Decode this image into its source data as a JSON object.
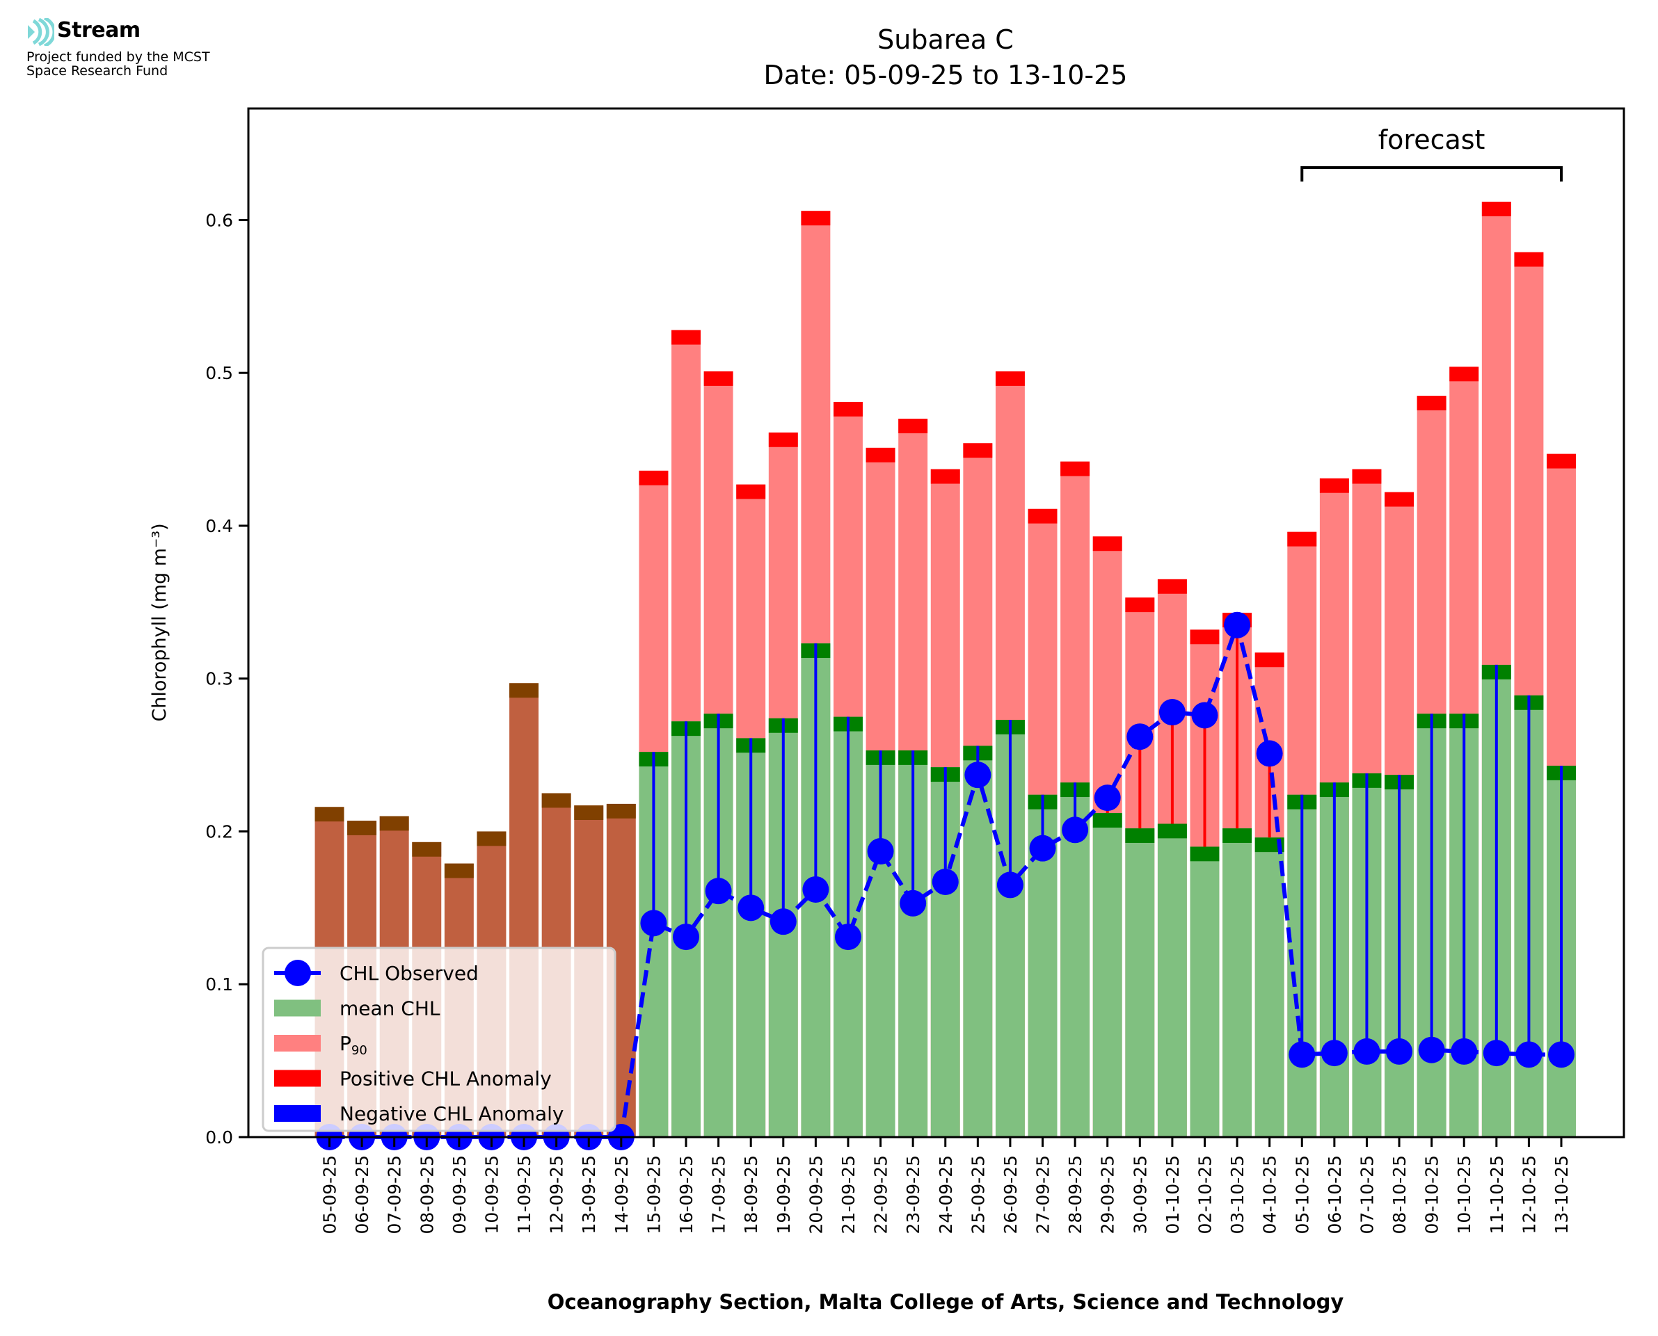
{
  "logo": {
    "name": "Stream",
    "subtitle_line1": "Project funded by the MCST",
    "subtitle_line2": "Space Research Fund",
    "accent_color": "#7fd8d8"
  },
  "chart_data": {
    "type": "bar",
    "title": "Subarea C",
    "subtitle": "Date: 05-09-25 to 13-10-25",
    "xlabel": "Oceanography Section, Malta College of Arts, Science and Technology",
    "ylabel": "Chlorophyll (mg m⁻³)",
    "ylim": [
      0,
      0.673
    ],
    "yticks": [
      0.0,
      0.1,
      0.2,
      0.3,
      0.4,
      0.5,
      0.6
    ],
    "ytick_labels": [
      "0.0",
      "0.1",
      "0.2",
      "0.3",
      "0.4",
      "0.5",
      "0.6"
    ],
    "grid": false,
    "legend_position": "lower-left",
    "annotation": {
      "text": "forecast",
      "from": "05-10-25",
      "to": "13-10-25"
    },
    "categories": [
      "05-09-25",
      "06-09-25",
      "07-09-25",
      "08-09-25",
      "09-09-25",
      "10-09-25",
      "11-09-25",
      "12-09-25",
      "13-09-25",
      "14-09-25",
      "15-09-25",
      "16-09-25",
      "17-09-25",
      "18-09-25",
      "19-09-25",
      "20-09-25",
      "21-09-25",
      "22-09-25",
      "23-09-25",
      "24-09-25",
      "25-09-25",
      "26-09-25",
      "27-09-25",
      "28-09-25",
      "29-09-25",
      "30-09-25",
      "01-10-25",
      "02-10-25",
      "03-10-25",
      "04-10-25",
      "05-10-25",
      "06-10-25",
      "07-10-25",
      "08-10-25",
      "09-10-25",
      "10-10-25",
      "11-10-25",
      "12-10-25",
      "13-10-25"
    ],
    "no_data_count": 10,
    "series": [
      {
        "name": "mean CHL",
        "color": "#80c080",
        "band_color": "#008000",
        "nodata_color": "#c06040",
        "nodata_band_color": "#804000",
        "values": [
          0.216,
          0.207,
          0.21,
          0.193,
          0.179,
          0.2,
          0.297,
          0.225,
          0.217,
          0.218,
          0.252,
          0.272,
          0.277,
          0.261,
          0.274,
          0.323,
          0.275,
          0.253,
          0.253,
          0.242,
          0.256,
          0.273,
          0.224,
          0.232,
          0.212,
          0.202,
          0.205,
          0.19,
          0.202,
          0.196,
          0.224,
          0.232,
          0.238,
          0.237,
          0.277,
          0.277,
          0.309,
          0.289,
          0.243
        ]
      },
      {
        "name": "P₉₀",
        "color": "#ff8080",
        "band_color": "#ff0000",
        "values": [
          null,
          null,
          null,
          null,
          null,
          null,
          null,
          null,
          null,
          null,
          0.436,
          0.528,
          0.501,
          0.427,
          0.461,
          0.606,
          0.481,
          0.451,
          0.47,
          0.437,
          0.454,
          0.501,
          0.411,
          0.442,
          0.393,
          0.353,
          0.365,
          0.332,
          0.343,
          0.317,
          0.396,
          0.431,
          0.437,
          0.422,
          0.485,
          0.504,
          0.612,
          0.579,
          0.447
        ]
      },
      {
        "name": "CHL Observed",
        "color": "#0000ff",
        "values": [
          0.0,
          0.0,
          0.0,
          0.0,
          0.0,
          0.0,
          0.0,
          0.0,
          0.0,
          0.0,
          0.14,
          0.131,
          0.161,
          0.15,
          0.141,
          0.162,
          0.131,
          0.187,
          0.153,
          0.167,
          0.237,
          0.165,
          0.189,
          0.201,
          0.222,
          0.262,
          0.278,
          0.276,
          0.335,
          0.251,
          0.054,
          0.055,
          0.056,
          0.056,
          0.057,
          0.056,
          0.055,
          0.054,
          0.054
        ]
      }
    ],
    "legend": [
      {
        "label": "CHL Observed",
        "kind": "line-marker",
        "color": "#0000ff"
      },
      {
        "label": "mean CHL",
        "kind": "patch",
        "color": "#80c080"
      },
      {
        "label": "P",
        "sub": "90",
        "kind": "patch",
        "color": "#ff8080"
      },
      {
        "label": "Positive CHL Anomaly",
        "kind": "patch",
        "color": "#ff0000"
      },
      {
        "label": "Negative CHL Anomaly",
        "kind": "patch",
        "color": "#0000ff"
      }
    ],
    "anomaly_colors": {
      "positive": "#ff0000",
      "negative": "#0000ff"
    }
  }
}
